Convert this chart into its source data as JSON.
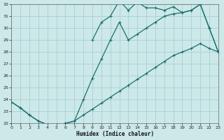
{
  "xlabel": "Humidex (Indice chaleur)",
  "xlim": [
    0,
    23
  ],
  "ylim": [
    22,
    32
  ],
  "xticks": [
    0,
    1,
    2,
    3,
    4,
    5,
    6,
    7,
    8,
    9,
    10,
    11,
    12,
    13,
    14,
    15,
    16,
    17,
    18,
    19,
    20,
    21,
    22,
    23
  ],
  "yticks": [
    22,
    23,
    24,
    25,
    26,
    27,
    28,
    29,
    30,
    31,
    32
  ],
  "bg_color": "#cce8e8",
  "grid_color": "#aad0d0",
  "line_color": "#1a7070",
  "curve_diagonal_x": [
    0,
    1,
    2,
    3,
    4,
    5,
    6,
    7,
    8,
    9,
    10,
    11,
    12,
    13,
    14,
    15,
    16,
    17,
    18,
    19,
    20,
    21,
    22,
    23
  ],
  "curve_diagonal_y": [
    23.8,
    23.3,
    22.7,
    22.2,
    21.9,
    21.9,
    22.0,
    22.2,
    22.7,
    23.2,
    23.7,
    24.2,
    24.7,
    25.2,
    25.7,
    26.2,
    26.7,
    27.2,
    27.7,
    28.0,
    28.3,
    28.7,
    28.3,
    28.0
  ],
  "curve_low_x": [
    0,
    1,
    2,
    3,
    4,
    5,
    6,
    7,
    8,
    9,
    10,
    11,
    12,
    13,
    14,
    15,
    16,
    17,
    18,
    19,
    20,
    21,
    22,
    23
  ],
  "curve_low_y": [
    23.8,
    23.3,
    22.7,
    22.2,
    21.9,
    21.9,
    22.0,
    22.2,
    24.0,
    25.8,
    27.4,
    29.0,
    30.5,
    29.0,
    29.5,
    30.0,
    30.5,
    31.0,
    31.2,
    31.3,
    31.5,
    32.0,
    30.0,
    28.0
  ],
  "curve_top_x": [
    9,
    10,
    11,
    12,
    13,
    14,
    15,
    16,
    17,
    18,
    19,
    20,
    21,
    22,
    23
  ],
  "curve_top_y": [
    29.0,
    30.5,
    31.0,
    32.3,
    31.5,
    32.2,
    31.7,
    31.7,
    31.5,
    31.8,
    31.3,
    31.5,
    32.0,
    30.0,
    28.0
  ]
}
